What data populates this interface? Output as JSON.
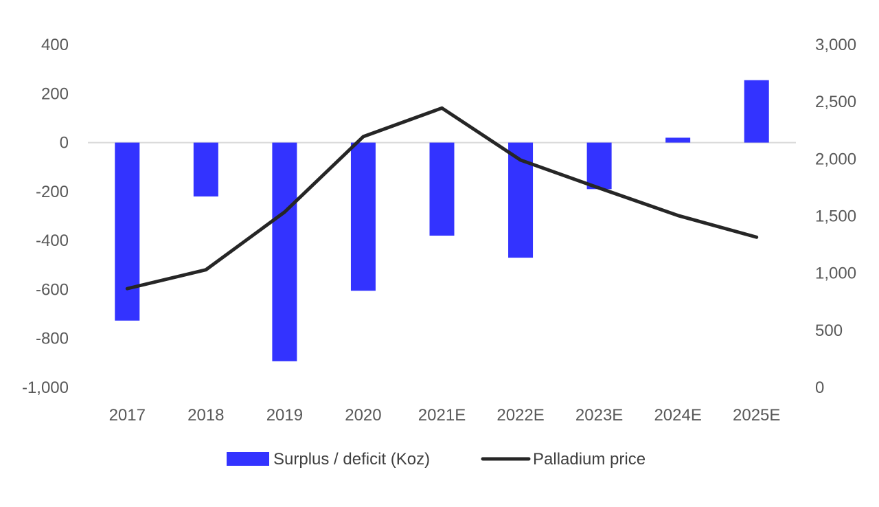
{
  "chart_data": {
    "type": "bar",
    "categories": [
      "2017",
      "2018",
      "2019",
      "2020",
      "2021E",
      "2022E",
      "2023E",
      "2024E",
      "2025E"
    ],
    "series": [
      {
        "name": "Surplus / deficit (Koz)",
        "kind": "bar",
        "axis": "left",
        "color": "#3333ff",
        "values": [
          -727,
          -220,
          -893,
          -605,
          -380,
          -470,
          -190,
          20,
          255
        ]
      },
      {
        "name": "Palladium price",
        "kind": "line",
        "axis": "right",
        "color": "#262626",
        "values": [
          865,
          1030,
          1535,
          2195,
          2445,
          1990,
          1745,
          1505,
          1315
        ]
      }
    ],
    "y_left": {
      "range": [
        -1000,
        400
      ],
      "ticks": [
        400,
        200,
        0,
        -200,
        -400,
        -600,
        -800,
        -1000
      ],
      "tick_labels": [
        "400",
        "200",
        "0",
        "-200",
        "-400",
        "-600",
        "-800",
        "-1,000"
      ]
    },
    "y_right": {
      "range": [
        0,
        3000
      ],
      "ticks": [
        3000,
        2500,
        2000,
        1500,
        1000,
        500,
        0
      ],
      "tick_labels": [
        "3,000",
        "2,500",
        "2,000",
        "1,500",
        "1,000",
        "500",
        "0"
      ]
    },
    "legend": {
      "position": "bottom",
      "entries": [
        "Surplus / deficit (Koz)",
        "Palladium price"
      ]
    },
    "title": "",
    "xlabel": "",
    "ylabel": "",
    "grid": false
  }
}
